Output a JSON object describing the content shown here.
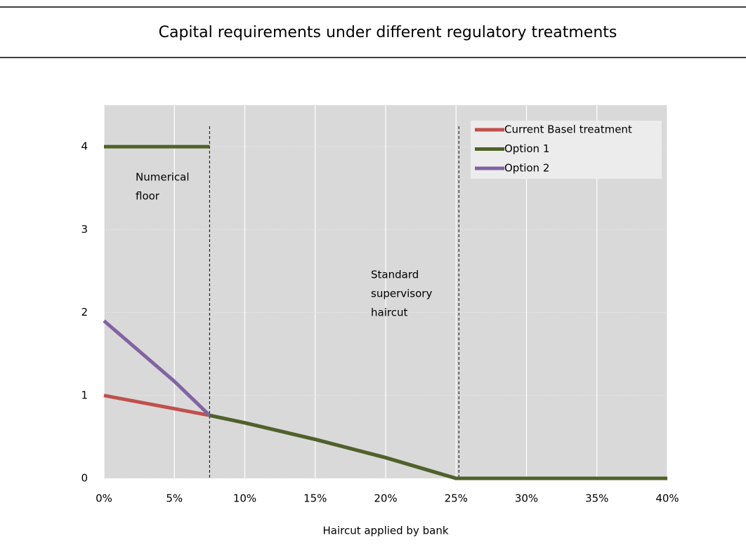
{
  "chart_data": {
    "type": "line",
    "title": "Capital requirements under different regulatory treatments",
    "x_label": "Haircut applied by bank",
    "xlim": [
      0,
      40
    ],
    "xticks": [
      {
        "value": 0,
        "label": "0%"
      },
      {
        "value": 5,
        "label": "5%"
      },
      {
        "value": 10,
        "label": "10%"
      },
      {
        "value": 15,
        "label": "15%"
      },
      {
        "value": 20,
        "label": "20%"
      },
      {
        "value": 25,
        "label": "25%"
      },
      {
        "value": 30,
        "label": "30%"
      },
      {
        "value": 35,
        "label": "35%"
      },
      {
        "value": 40,
        "label": "40%"
      }
    ],
    "ylim": [
      0,
      4.5
    ],
    "yticks": [
      0,
      1,
      2,
      3,
      4
    ],
    "grid": true,
    "legend": "upper right",
    "series": [
      {
        "name": "Current Basel treatment",
        "color": "#c0504d",
        "x": [
          0,
          7.5,
          10,
          15,
          20,
          25,
          40
        ],
        "values": [
          1,
          0.76,
          0.67,
          0.47,
          0.25,
          0,
          0
        ]
      },
      {
        "name": "Option 1",
        "color": "#4f6228",
        "x": [
          0,
          7.5,
          7.5,
          7.5,
          10,
          15,
          20,
          25,
          40
        ],
        "values": [
          4,
          4,
          null,
          0.76,
          0.67,
          0.47,
          0.25,
          0,
          0
        ]
      },
      {
        "name": "Option 2",
        "color": "#8064a2",
        "x": [
          0,
          5,
          7.5,
          10,
          15,
          20,
          25,
          40
        ],
        "values": [
          1.9,
          1.17,
          0.76,
          0.67,
          0.47,
          0.25,
          0,
          0
        ]
      }
    ],
    "annotations": [
      {
        "x": 7.5,
        "lines": [
          "Numerical",
          "floor"
        ]
      },
      {
        "x": 25.2,
        "lines": [
          "Standard",
          "supervisory",
          "haircut"
        ]
      }
    ]
  }
}
